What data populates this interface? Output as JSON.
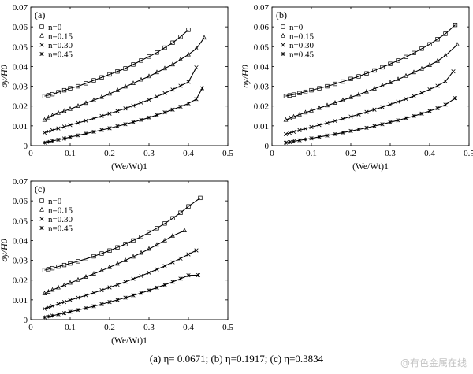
{
  "caption": "(a) η=  0.0671; (b) η=0.1917; (c) η=0.3834",
  "watermark": "@有色金属在线",
  "chart_data": [
    {
      "type": "scatter",
      "panel_label": "(a)",
      "xlabel": "(We/Wt)1",
      "ylabel": "σy/H0",
      "xlim": [
        0,
        0.5
      ],
      "ylim": [
        0,
        0.07
      ],
      "x_ticks": [
        "0",
        "0.1",
        "0.2",
        "0.3",
        "0.4",
        "0.5"
      ],
      "y_ticks": [
        "0",
        "0.01",
        "0.02",
        "0.03",
        "0.04",
        "0.05",
        "0.06",
        "0.07"
      ],
      "legend_position": "top-left",
      "series": [
        {
          "name": "n=0",
          "marker": "square",
          "x": [
            0.035,
            0.045,
            0.055,
            0.07,
            0.085,
            0.1,
            0.12,
            0.14,
            0.16,
            0.18,
            0.2,
            0.22,
            0.24,
            0.26,
            0.28,
            0.3,
            0.32,
            0.34,
            0.36,
            0.38,
            0.4
          ],
          "y": [
            0.025,
            0.0255,
            0.026,
            0.027,
            0.028,
            0.029,
            0.03,
            0.0315,
            0.033,
            0.0345,
            0.036,
            0.0375,
            0.039,
            0.041,
            0.043,
            0.045,
            0.047,
            0.0495,
            0.052,
            0.055,
            0.0585
          ]
        },
        {
          "name": "n=0.15",
          "marker": "triangle",
          "x": [
            0.035,
            0.045,
            0.055,
            0.07,
            0.085,
            0.1,
            0.12,
            0.14,
            0.16,
            0.18,
            0.2,
            0.22,
            0.24,
            0.26,
            0.28,
            0.3,
            0.32,
            0.34,
            0.36,
            0.38,
            0.4,
            0.42,
            0.44
          ],
          "y": [
            0.013,
            0.0142,
            0.0152,
            0.0165,
            0.0175,
            0.0185,
            0.02,
            0.0215,
            0.023,
            0.0245,
            0.0262,
            0.028,
            0.0298,
            0.0315,
            0.0333,
            0.035,
            0.037,
            0.039,
            0.041,
            0.0435,
            0.046,
            0.049,
            0.0545
          ]
        },
        {
          "name": "n=0.30",
          "marker": "x",
          "x": [
            0.035,
            0.045,
            0.055,
            0.07,
            0.085,
            0.1,
            0.12,
            0.14,
            0.16,
            0.18,
            0.2,
            0.22,
            0.24,
            0.26,
            0.28,
            0.3,
            0.32,
            0.34,
            0.36,
            0.38,
            0.4,
            0.42
          ],
          "y": [
            0.0065,
            0.0072,
            0.0078,
            0.0087,
            0.0096,
            0.0104,
            0.0115,
            0.0126,
            0.0138,
            0.015,
            0.0162,
            0.0175,
            0.0188,
            0.0202,
            0.0217,
            0.0232,
            0.0248,
            0.0265,
            0.0283,
            0.0302,
            0.0322,
            0.0395
          ]
        },
        {
          "name": "n=0.45",
          "marker": "star",
          "x": [
            0.035,
            0.045,
            0.055,
            0.07,
            0.085,
            0.1,
            0.12,
            0.14,
            0.16,
            0.18,
            0.2,
            0.22,
            0.24,
            0.26,
            0.28,
            0.3,
            0.32,
            0.34,
            0.36,
            0.38,
            0.4,
            0.42,
            0.435
          ],
          "y": [
            0.0015,
            0.0019,
            0.0024,
            0.003,
            0.0036,
            0.0043,
            0.0052,
            0.0061,
            0.007,
            0.0079,
            0.0088,
            0.0098,
            0.0108,
            0.0119,
            0.013,
            0.0142,
            0.0155,
            0.0168,
            0.0182,
            0.0197,
            0.0213,
            0.0235,
            0.029
          ]
        }
      ]
    },
    {
      "type": "scatter",
      "panel_label": "(b)",
      "xlabel": "(We/Wt)1",
      "ylabel": "σy/H0",
      "xlim": [
        0,
        0.5
      ],
      "ylim": [
        0,
        0.07
      ],
      "x_ticks": [
        "0",
        "0.1",
        "0.2",
        "0.3",
        "0.4",
        "0.5"
      ],
      "y_ticks": [
        "0",
        "0.01",
        "0.02",
        "0.03",
        "0.04",
        "0.05",
        "0.06",
        "0.07"
      ],
      "legend_position": "top-left",
      "series": [
        {
          "name": "n=0",
          "marker": "square",
          "x": [
            0.035,
            0.045,
            0.055,
            0.07,
            0.085,
            0.1,
            0.12,
            0.14,
            0.16,
            0.18,
            0.2,
            0.22,
            0.24,
            0.26,
            0.28,
            0.3,
            0.32,
            0.34,
            0.36,
            0.38,
            0.4,
            0.42,
            0.44,
            0.465
          ],
          "y": [
            0.025,
            0.0254,
            0.0258,
            0.0265,
            0.0272,
            0.028,
            0.029,
            0.03,
            0.0312,
            0.0324,
            0.0337,
            0.035,
            0.0365,
            0.038,
            0.0396,
            0.0413,
            0.043,
            0.0448,
            0.0468,
            0.049,
            0.0512,
            0.0538,
            0.0565,
            0.061
          ]
        },
        {
          "name": "n=0.15",
          "marker": "triangle",
          "x": [
            0.035,
            0.045,
            0.055,
            0.07,
            0.085,
            0.1,
            0.12,
            0.14,
            0.16,
            0.18,
            0.2,
            0.22,
            0.24,
            0.26,
            0.28,
            0.3,
            0.32,
            0.34,
            0.36,
            0.38,
            0.4,
            0.42,
            0.44,
            0.47
          ],
          "y": [
            0.013,
            0.0138,
            0.0146,
            0.0157,
            0.0167,
            0.0177,
            0.019,
            0.0203,
            0.0216,
            0.023,
            0.0244,
            0.0258,
            0.0273,
            0.0288,
            0.0303,
            0.0319,
            0.0335,
            0.0352,
            0.037,
            0.0388,
            0.0407,
            0.0427,
            0.0455,
            0.051
          ]
        },
        {
          "name": "n=0.30",
          "marker": "x",
          "x": [
            0.035,
            0.045,
            0.055,
            0.07,
            0.085,
            0.1,
            0.12,
            0.14,
            0.16,
            0.18,
            0.2,
            0.22,
            0.24,
            0.26,
            0.28,
            0.3,
            0.32,
            0.34,
            0.36,
            0.38,
            0.4,
            0.42,
            0.44,
            0.46
          ],
          "y": [
            0.0058,
            0.0064,
            0.007,
            0.0078,
            0.0086,
            0.0094,
            0.0104,
            0.0114,
            0.0125,
            0.0136,
            0.0147,
            0.0158,
            0.017,
            0.0182,
            0.0195,
            0.0208,
            0.0222,
            0.0236,
            0.0251,
            0.0267,
            0.0284,
            0.0302,
            0.0325,
            0.0375
          ]
        },
        {
          "name": "n=0.45",
          "marker": "star",
          "x": [
            0.035,
            0.045,
            0.055,
            0.07,
            0.085,
            0.1,
            0.12,
            0.14,
            0.16,
            0.18,
            0.2,
            0.22,
            0.24,
            0.26,
            0.28,
            0.3,
            0.32,
            0.34,
            0.36,
            0.38,
            0.4,
            0.42,
            0.44,
            0.465
          ],
          "y": [
            0.0015,
            0.0018,
            0.0022,
            0.0027,
            0.0032,
            0.0037,
            0.0044,
            0.0051,
            0.0058,
            0.0066,
            0.0074,
            0.0082,
            0.009,
            0.0099,
            0.0108,
            0.0118,
            0.0128,
            0.0139,
            0.015,
            0.0162,
            0.0175,
            0.0189,
            0.0207,
            0.024
          ]
        }
      ]
    },
    {
      "type": "scatter",
      "panel_label": "(c)",
      "xlabel": "(We/Wt)1",
      "ylabel": "σy/H0",
      "xlim": [
        0,
        0.5
      ],
      "ylim": [
        0,
        0.07
      ],
      "x_ticks": [
        "0",
        "0.1",
        "0.2",
        "0.3",
        "0.4",
        "0.5"
      ],
      "y_ticks": [
        "0",
        "0.01",
        "0.02",
        "0.03",
        "0.04",
        "0.05",
        "0.06",
        "0.07"
      ],
      "legend_position": "top-left",
      "series": [
        {
          "name": "n=0",
          "marker": "square",
          "x": [
            0.035,
            0.045,
            0.055,
            0.07,
            0.085,
            0.1,
            0.12,
            0.14,
            0.16,
            0.18,
            0.2,
            0.22,
            0.24,
            0.26,
            0.28,
            0.3,
            0.32,
            0.34,
            0.36,
            0.38,
            0.4,
            0.43
          ],
          "y": [
            0.025,
            0.0255,
            0.026,
            0.0268,
            0.0276,
            0.0284,
            0.0295,
            0.0307,
            0.032,
            0.0334,
            0.0349,
            0.0365,
            0.0382,
            0.04,
            0.0419,
            0.044,
            0.0462,
            0.0486,
            0.0512,
            0.054,
            0.0572,
            0.0615
          ]
        },
        {
          "name": "n=0.15",
          "marker": "triangle",
          "x": [
            0.035,
            0.045,
            0.055,
            0.07,
            0.085,
            0.1,
            0.12,
            0.14,
            0.16,
            0.18,
            0.2,
            0.22,
            0.24,
            0.26,
            0.28,
            0.3,
            0.32,
            0.34,
            0.36,
            0.39
          ],
          "y": [
            0.0132,
            0.0141,
            0.015,
            0.0162,
            0.0174,
            0.0186,
            0.0201,
            0.0216,
            0.0232,
            0.0248,
            0.0265,
            0.0282,
            0.03,
            0.0318,
            0.0337,
            0.0357,
            0.0378,
            0.04,
            0.0423,
            0.045
          ]
        },
        {
          "name": "n=0.30",
          "marker": "x",
          "x": [
            0.035,
            0.045,
            0.055,
            0.07,
            0.085,
            0.1,
            0.12,
            0.14,
            0.16,
            0.18,
            0.2,
            0.22,
            0.24,
            0.26,
            0.28,
            0.3,
            0.32,
            0.34,
            0.36,
            0.38,
            0.4,
            0.42
          ],
          "y": [
            0.0055,
            0.0062,
            0.0069,
            0.0079,
            0.0089,
            0.0099,
            0.0111,
            0.0123,
            0.0136,
            0.0149,
            0.0163,
            0.0177,
            0.0191,
            0.0206,
            0.0221,
            0.0237,
            0.0254,
            0.0271,
            0.029,
            0.0309,
            0.033,
            0.035
          ]
        },
        {
          "name": "n=0.45",
          "marker": "star",
          "x": [
            0.035,
            0.045,
            0.055,
            0.07,
            0.085,
            0.1,
            0.12,
            0.14,
            0.16,
            0.18,
            0.2,
            0.22,
            0.24,
            0.26,
            0.28,
            0.3,
            0.32,
            0.34,
            0.36,
            0.38,
            0.4,
            0.425
          ],
          "y": [
            0.0012,
            0.0016,
            0.002,
            0.0027,
            0.0033,
            0.004,
            0.0049,
            0.0058,
            0.0068,
            0.0078,
            0.0089,
            0.01,
            0.0111,
            0.0123,
            0.0135,
            0.0148,
            0.0162,
            0.0176,
            0.0191,
            0.0207,
            0.0224,
            0.0225
          ]
        }
      ]
    }
  ]
}
